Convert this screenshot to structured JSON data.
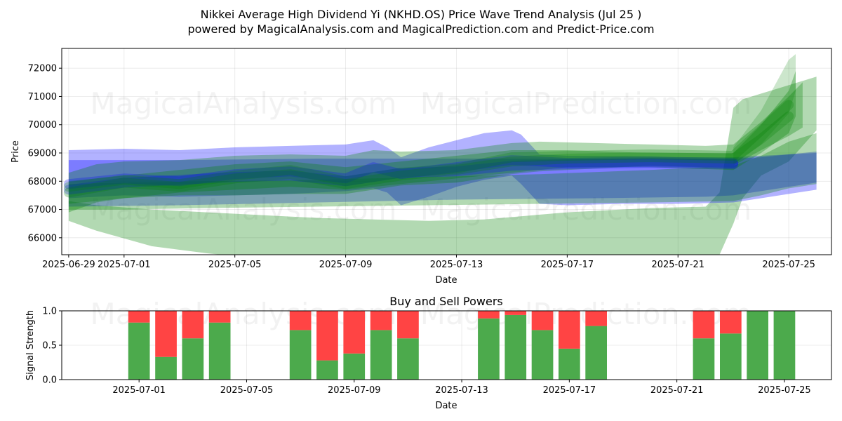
{
  "figure": {
    "title_line1": "Nikkei Average High Dividend Yi (NKHD.OS) Price Wave Trend Analysis (Jul 25 )",
    "title_line2": "powered by MagicalAnalysis.com and MagicalPrediction.com and Predict-Price.com",
    "watermarks": [
      "MagicalAnalysis.com",
      "MagicalPrediction.com"
    ]
  },
  "chart_data": [
    {
      "type": "area",
      "title": "",
      "xlabel": "Date",
      "ylabel": "Price",
      "xlim": [
        "2025-06-28T18:00",
        "2025-07-26T13:00"
      ],
      "ylim": [
        65400,
        72700
      ],
      "grid": true,
      "x_ticks": [
        "2025-06-29",
        "2025-07-01",
        "2025-07-05",
        "2025-07-09",
        "2025-07-13",
        "2025-07-17",
        "2025-07-21",
        "2025-07-25"
      ],
      "y_ticks": [
        66000,
        67000,
        68000,
        69000,
        70000,
        71000,
        72000
      ],
      "colors": {
        "blue": "#0000ff",
        "green": "#008000",
        "red": "#ff0000",
        "bar_green": "#4caa4c",
        "bar_red": "#ff4444"
      },
      "bands": [
        {
          "color": "green",
          "opacity": 0.3,
          "points": [
            [
              "2025-06-29",
              66600,
              67300
            ],
            [
              "2025-06-30",
              66250,
              67150
            ],
            [
              "2025-07-02",
              65700,
              67000
            ],
            [
              "2025-07-04",
              65450,
              66900
            ],
            [
              "2025-07-06",
              65250,
              66800
            ],
            [
              "2025-07-08",
              65000,
              66700
            ],
            [
              "2025-07-10",
              64900,
              66650
            ],
            [
              "2025-07-12",
              64850,
              66600
            ],
            [
              "2025-07-14",
              64900,
              66650
            ],
            [
              "2025-07-17",
              65100,
              66900
            ],
            [
              "2025-07-20",
              65150,
              67050
            ],
            [
              "2025-07-22",
              65200,
              67100
            ],
            [
              "2025-07-22T12:00",
              65400,
              67600
            ],
            [
              "2025-07-23",
              66500,
              70600
            ],
            [
              "2025-07-23T08:00",
              67400,
              70900
            ],
            [
              "2025-07-24",
              68200,
              71100
            ],
            [
              "2025-07-25",
              68700,
              71400
            ],
            [
              "2025-07-26",
              69800,
              71700
            ]
          ]
        },
        {
          "color": "blue",
          "opacity": 0.3,
          "points": [
            [
              "2025-06-29",
              67400,
              69100
            ],
            [
              "2025-07-01",
              67500,
              69150
            ],
            [
              "2025-07-03",
              67450,
              69100
            ],
            [
              "2025-07-05",
              67500,
              69200
            ],
            [
              "2025-07-07",
              67550,
              69250
            ],
            [
              "2025-07-09",
              67650,
              69300
            ],
            [
              "2025-07-10",
              67750,
              69450
            ],
            [
              "2025-07-10T12:00",
              67600,
              69200
            ],
            [
              "2025-07-11",
              67150,
              68850
            ],
            [
              "2025-07-12",
              67450,
              69200
            ],
            [
              "2025-07-13",
              67800,
              69450
            ],
            [
              "2025-07-14",
              68050,
              69700
            ],
            [
              "2025-07-15",
              68200,
              69800
            ],
            [
              "2025-07-15T08:00",
              67900,
              69650
            ],
            [
              "2025-07-16",
              67200,
              68950
            ],
            [
              "2025-07-17",
              67150,
              68900
            ],
            [
              "2025-07-19",
              67200,
              68900
            ],
            [
              "2025-07-21",
              67200,
              68850
            ],
            [
              "2025-07-23",
              67250,
              68850
            ],
            [
              "2025-07-24",
              67400,
              68900
            ],
            [
              "2025-07-25",
              67550,
              68950
            ],
            [
              "2025-07-26",
              67700,
              69000
            ]
          ]
        },
        {
          "color": "blue",
          "opacity": 0.3,
          "points": [
            [
              "2025-06-29",
              67100,
              68750
            ],
            [
              "2025-07-03",
              67150,
              68750
            ],
            [
              "2025-07-08",
              67250,
              68800
            ],
            [
              "2025-07-13",
              67350,
              68800
            ],
            [
              "2025-07-18",
              67400,
              68800
            ],
            [
              "2025-07-22",
              67450,
              68800
            ],
            [
              "2025-07-23",
              67500,
              68800
            ],
            [
              "2025-07-24",
              67650,
              68850
            ],
            [
              "2025-07-25",
              67800,
              68950
            ],
            [
              "2025-07-26",
              67950,
              69050
            ]
          ]
        },
        {
          "color": "green",
          "opacity": 0.3,
          "points": [
            [
              "2025-06-29",
              67000,
              67900
            ],
            [
              "2025-07-01",
              67000,
              67950
            ],
            [
              "2025-07-04",
              67050,
              68000
            ],
            [
              "2025-07-08",
              67100,
              68050
            ],
            [
              "2025-07-12",
              67150,
              68150
            ],
            [
              "2025-07-16",
              67200,
              68250
            ],
            [
              "2025-07-20",
              67250,
              68400
            ],
            [
              "2025-07-23",
              67300,
              68550
            ],
            [
              "2025-07-24",
              67500,
              68900
            ],
            [
              "2025-07-25",
              67750,
              69400
            ],
            [
              "2025-07-26",
              67900,
              69700
            ]
          ]
        },
        {
          "color": "green",
          "opacity": 0.3,
          "points": [
            [
              "2025-06-29",
              66900,
              68300
            ],
            [
              "2025-06-30",
              67250,
              68600
            ],
            [
              "2025-07-01",
              67400,
              68700
            ],
            [
              "2025-07-03",
              67500,
              68750
            ],
            [
              "2025-07-05",
              67500,
              68900
            ],
            [
              "2025-07-07",
              67550,
              68950
            ],
            [
              "2025-07-09",
              67550,
              68900
            ],
            [
              "2025-07-10",
              67700,
              69100
            ],
            [
              "2025-07-11",
              67850,
              69050
            ],
            [
              "2025-07-13",
              67950,
              69100
            ],
            [
              "2025-07-15",
              68250,
              69350
            ],
            [
              "2025-07-16",
              68350,
              69400
            ],
            [
              "2025-07-18",
              68450,
              69350
            ],
            [
              "2025-07-20",
              68550,
              69300
            ],
            [
              "2025-07-22",
              68500,
              69250
            ],
            [
              "2025-07-23",
              68550,
              69300
            ],
            [
              "2025-07-24",
              69100,
              70100
            ],
            [
              "2025-07-25",
              69600,
              71000
            ],
            [
              "2025-07-25T12:00",
              69900,
              71500
            ]
          ]
        },
        {
          "color": "green",
          "opacity": 0.3,
          "points": [
            [
              "2025-06-29",
              67200,
              68000
            ],
            [
              "2025-07-01",
              67400,
              68200
            ],
            [
              "2025-07-03",
              67600,
              68400
            ],
            [
              "2025-07-05",
              67700,
              68600
            ],
            [
              "2025-07-07",
              67800,
              68700
            ],
            [
              "2025-07-09",
              67700,
              68500
            ],
            [
              "2025-07-11",
              67900,
              68700
            ],
            [
              "2025-07-13",
              68100,
              68900
            ],
            [
              "2025-07-15",
              68300,
              69100
            ],
            [
              "2025-07-17",
              68500,
              69100
            ],
            [
              "2025-07-20",
              68500,
              69000
            ],
            [
              "2025-07-23",
              68400,
              69000
            ],
            [
              "2025-07-24",
              69000,
              70000
            ],
            [
              "2025-07-25",
              69700,
              71200
            ],
            [
              "2025-07-25T06:00",
              70300,
              71900
            ]
          ]
        },
        {
          "color": "green",
          "opacity": 0.2,
          "points": [
            [
              "2025-07-23",
              68600,
              69200
            ],
            [
              "2025-07-24",
              69300,
              70500
            ],
            [
              "2025-07-25",
              70400,
              72300
            ],
            [
              "2025-07-25T06:00",
              71200,
              72500
            ]
          ]
        }
      ],
      "wave_lines": [
        {
          "color": "blue",
          "points": [
            [
              "2025-06-29",
              67900
            ],
            [
              "2025-07-01",
              68100
            ],
            [
              "2025-07-03",
              68000
            ],
            [
              "2025-07-05",
              68250
            ],
            [
              "2025-07-07",
              68350
            ],
            [
              "2025-07-09",
              68100
            ],
            [
              "2025-07-10",
              68500
            ],
            [
              "2025-07-11",
              68250
            ],
            [
              "2025-07-13",
              68500
            ],
            [
              "2025-07-15",
              68750
            ],
            [
              "2025-07-17",
              68650
            ],
            [
              "2025-07-20",
              68700
            ],
            [
              "2025-07-23",
              68650
            ]
          ]
        },
        {
          "color": "blue",
          "points": [
            [
              "2025-06-29",
              67700
            ],
            [
              "2025-07-01",
              67950
            ],
            [
              "2025-07-03",
              68050
            ],
            [
              "2025-07-05",
              68150
            ],
            [
              "2025-07-07",
              68200
            ],
            [
              "2025-07-09",
              68000
            ],
            [
              "2025-07-11",
              68300
            ],
            [
              "2025-07-13",
              68350
            ],
            [
              "2025-07-15",
              68550
            ],
            [
              "2025-07-17",
              68600
            ],
            [
              "2025-07-20",
              68650
            ],
            [
              "2025-07-23",
              68600
            ]
          ]
        },
        {
          "color": "green",
          "points": [
            [
              "2025-06-29",
              67800
            ],
            [
              "2025-07-01",
              68050
            ],
            [
              "2025-07-03",
              67900
            ],
            [
              "2025-07-05",
              68200
            ],
            [
              "2025-07-07",
              68400
            ],
            [
              "2025-07-09",
              68000
            ],
            [
              "2025-07-11",
              68300
            ],
            [
              "2025-07-13",
              68450
            ],
            [
              "2025-07-15",
              68850
            ],
            [
              "2025-07-17",
              68900
            ],
            [
              "2025-07-20",
              68950
            ],
            [
              "2025-07-23",
              68900
            ],
            [
              "2025-07-24",
              69800
            ],
            [
              "2025-07-25",
              70700
            ]
          ]
        },
        {
          "color": "green",
          "points": [
            [
              "2025-06-29",
              67600
            ],
            [
              "2025-07-01",
              67950
            ],
            [
              "2025-07-03",
              67800
            ],
            [
              "2025-07-05",
              68100
            ],
            [
              "2025-07-07",
              68250
            ],
            [
              "2025-07-09",
              67900
            ],
            [
              "2025-07-11",
              68200
            ],
            [
              "2025-07-13",
              68400
            ],
            [
              "2025-07-15",
              68700
            ],
            [
              "2025-07-17",
              68800
            ],
            [
              "2025-07-20",
              68850
            ],
            [
              "2025-07-23",
              68800
            ],
            [
              "2025-07-24",
              69500
            ],
            [
              "2025-07-25",
              70300
            ]
          ]
        }
      ]
    },
    {
      "type": "bar",
      "title": "Buy and Sell Powers",
      "xlabel": "Date",
      "ylabel": "Signal Strength",
      "xlim": [
        "2025-06-28T03:00",
        "2025-07-26T18:00"
      ],
      "ylim": [
        0,
        1
      ],
      "grid": true,
      "x_ticks": [
        "2025-07-01",
        "2025-07-05",
        "2025-07-09",
        "2025-07-13",
        "2025-07-17",
        "2025-07-21",
        "2025-07-25"
      ],
      "y_ticks": [
        0.0,
        0.5,
        1.0
      ],
      "y_tick_labels": [
        "0.0",
        "0.5",
        "1.0"
      ],
      "series": [
        {
          "name": "",
          "color": "green",
          "dates": [
            "2025-07-01",
            "2025-07-02",
            "2025-07-03",
            "2025-07-04",
            "2025-07-07",
            "2025-07-08",
            "2025-07-09",
            "2025-07-10",
            "2025-07-11",
            "2025-07-14",
            "2025-07-15",
            "2025-07-16",
            "2025-07-17",
            "2025-07-18",
            "2025-07-22",
            "2025-07-23",
            "2025-07-24",
            "2025-07-25"
          ],
          "values": [
            0.83,
            0.33,
            0.6,
            0.83,
            0.72,
            0.28,
            0.38,
            0.72,
            0.6,
            0.89,
            0.94,
            0.72,
            0.45,
            0.78,
            0.6,
            0.67,
            1.0,
            1.0
          ]
        },
        {
          "name": "",
          "color": "red",
          "dates": [
            "2025-07-01",
            "2025-07-02",
            "2025-07-03",
            "2025-07-04",
            "2025-07-07",
            "2025-07-08",
            "2025-07-09",
            "2025-07-10",
            "2025-07-11",
            "2025-07-14",
            "2025-07-15",
            "2025-07-16",
            "2025-07-17",
            "2025-07-18",
            "2025-07-22",
            "2025-07-23",
            "2025-07-24",
            "2025-07-25"
          ],
          "values": [
            0.17,
            0.67,
            0.4,
            0.17,
            0.28,
            0.72,
            0.62,
            0.28,
            0.4,
            0.11,
            0.06,
            0.28,
            0.55,
            0.22,
            0.4,
            0.33,
            0.0,
            0.0
          ]
        }
      ]
    }
  ]
}
